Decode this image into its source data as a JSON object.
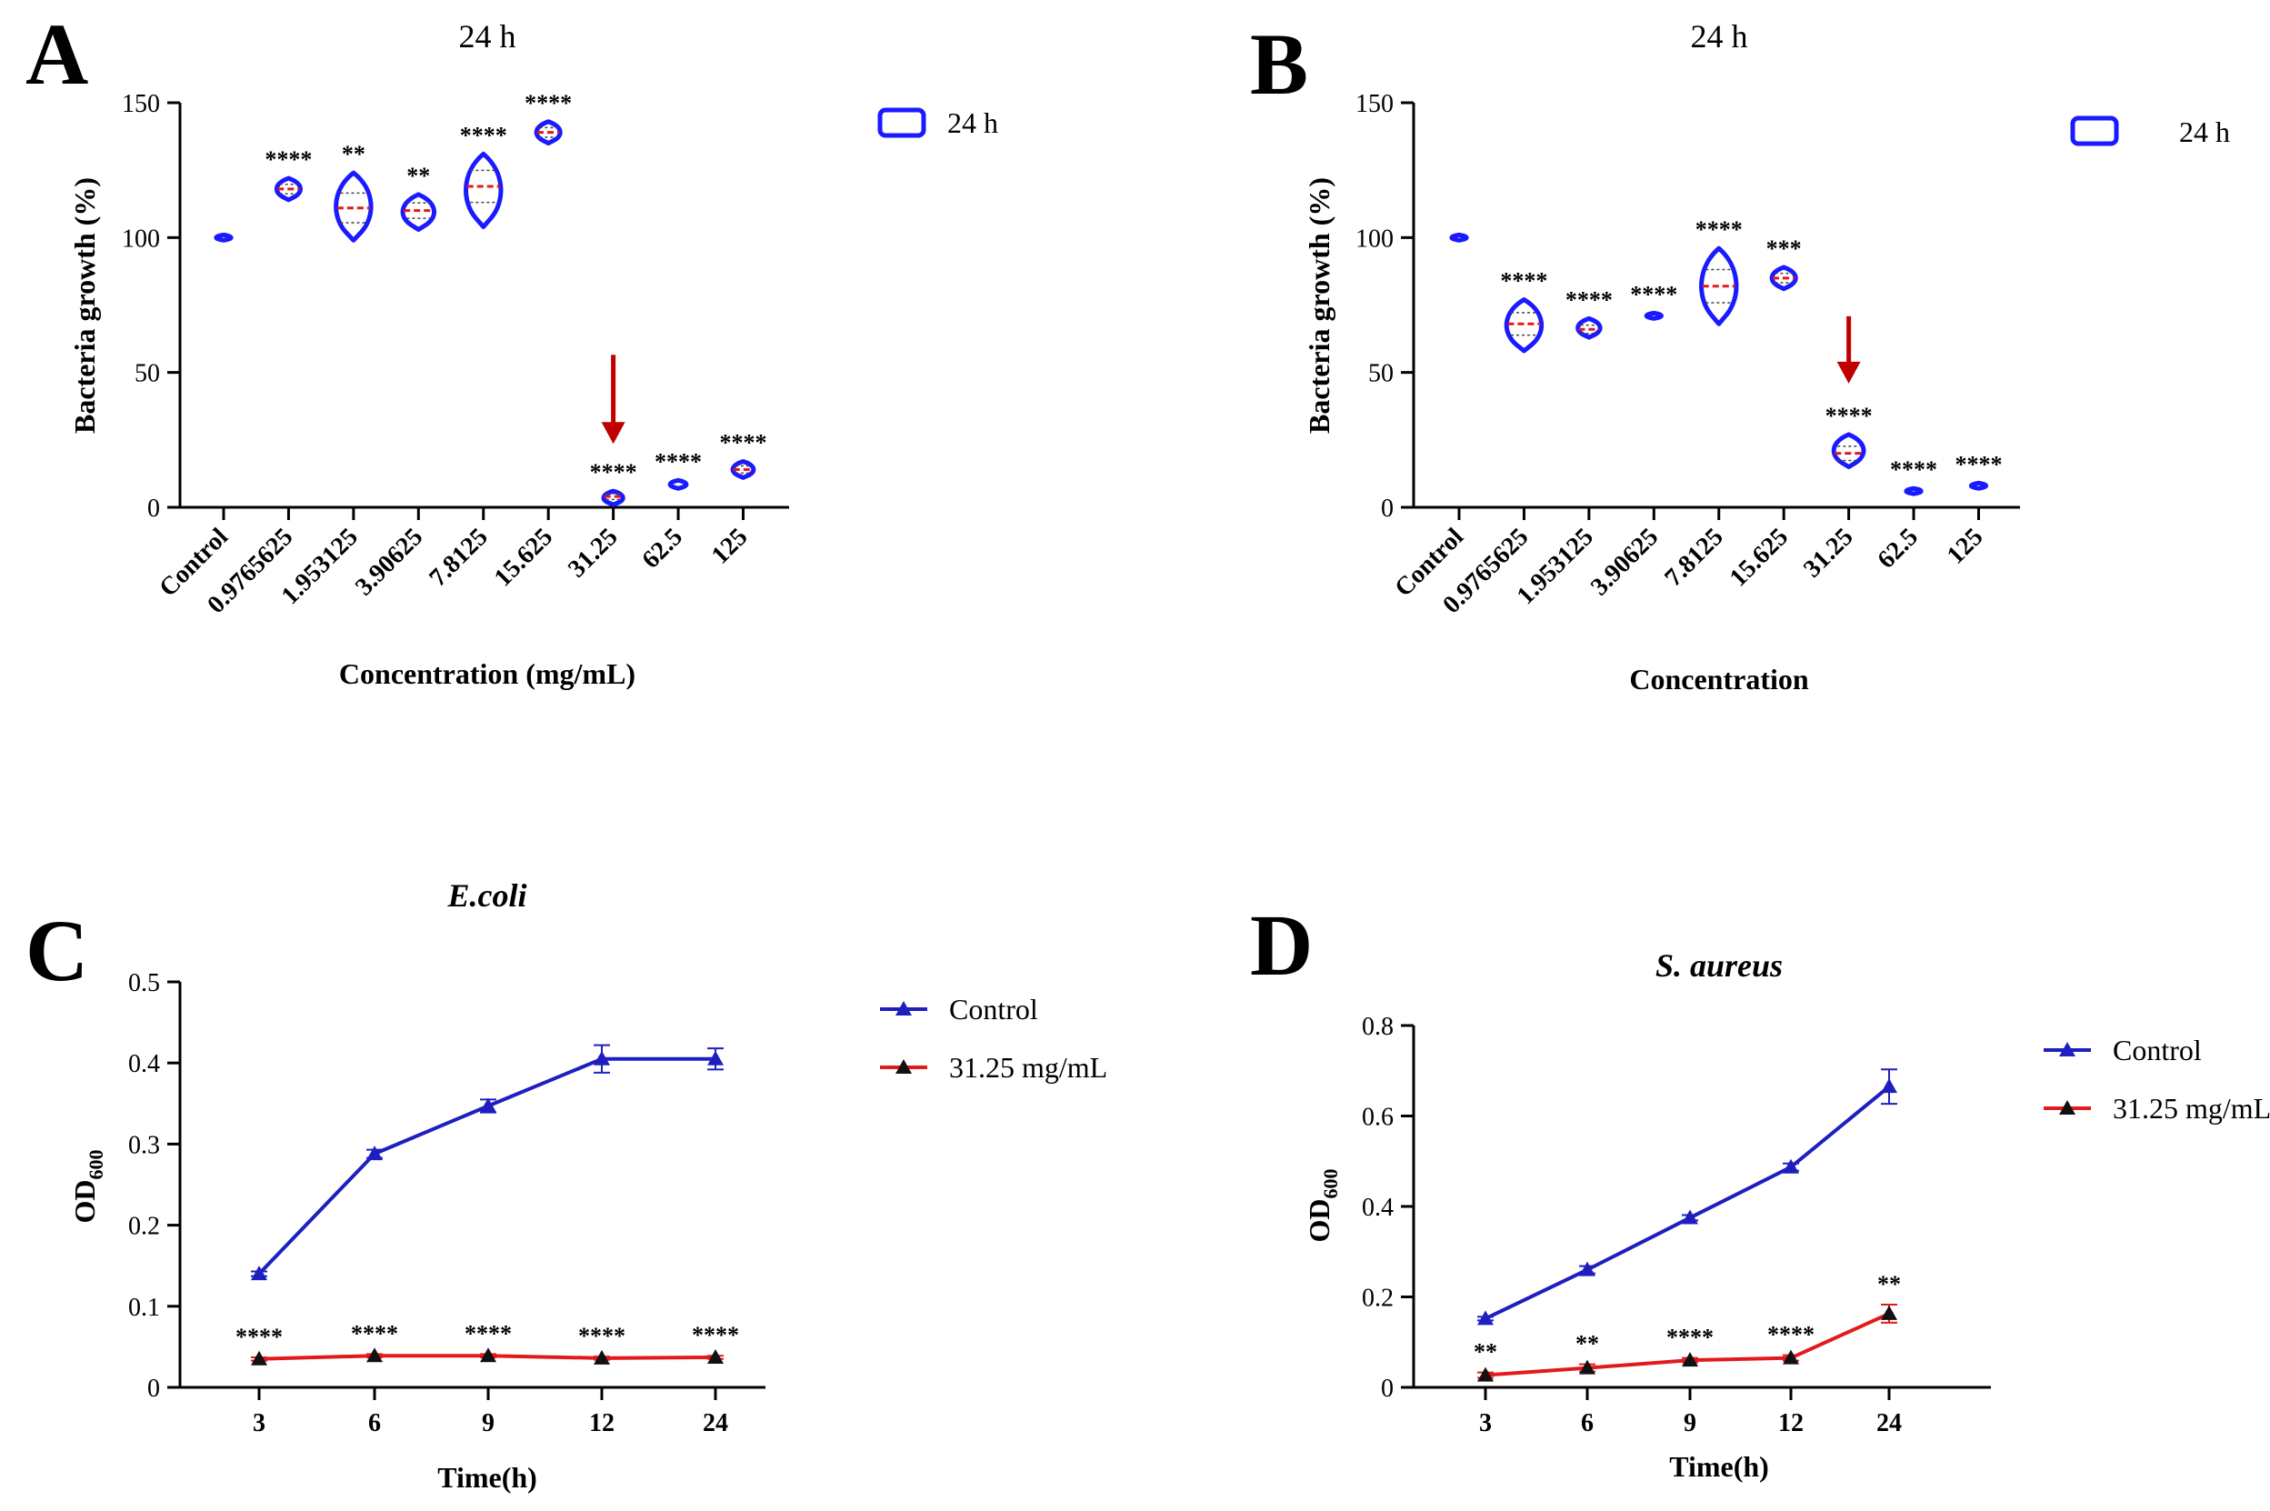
{
  "chart_data": [
    {
      "panel": "A",
      "type": "violin",
      "title": "24 h",
      "xlabel": "Concentration (mg/mL)",
      "ylabel": "Bacteria growth (%)",
      "ylim": [
        0,
        150
      ],
      "yticks": [
        0,
        50,
        100,
        150
      ],
      "categories": [
        "Control",
        "0.9765625",
        "1.953125",
        "3.90625",
        "7.8125",
        "15.625",
        "31.25",
        "62.5",
        "125"
      ],
      "series": [
        {
          "name": "24 h",
          "medians": [
            100,
            118,
            111,
            110,
            119,
            139,
            4,
            8,
            14
          ],
          "mins": [
            99,
            114,
            99,
            103,
            104,
            135,
            1,
            7,
            11
          ],
          "maxs": [
            101,
            122,
            124,
            116,
            131,
            143,
            6,
            10,
            17
          ]
        }
      ],
      "significance": [
        "",
        "****",
        "**",
        "**",
        "****",
        "****",
        "****",
        "****",
        "****"
      ],
      "arrow_at": "31.25",
      "legend": [
        "24 h"
      ]
    },
    {
      "panel": "B",
      "type": "violin",
      "title": "24 h",
      "xlabel": "Concentration",
      "ylabel": "Bacteria growth (%)",
      "ylim": [
        0,
        150
      ],
      "yticks": [
        0,
        50,
        100,
        150
      ],
      "categories": [
        "Control",
        "0.9765625",
        "1.953125",
        "3.90625",
        "7.8125",
        "15.625",
        "31.25",
        "62.5",
        "125"
      ],
      "series": [
        {
          "name": "24 h",
          "medians": [
            100,
            68,
            66,
            71,
            82,
            85,
            20,
            6,
            8
          ],
          "mins": [
            99,
            58,
            63,
            70,
            68,
            81,
            15,
            5,
            7
          ],
          "maxs": [
            101,
            77,
            70,
            72,
            96,
            89,
            27,
            7,
            9
          ]
        }
      ],
      "significance": [
        "",
        "****",
        "****",
        "****",
        "****",
        "***",
        "****",
        "****",
        "****"
      ],
      "arrow_at": "31.25",
      "legend": [
        "24 h"
      ]
    },
    {
      "panel": "C",
      "type": "line",
      "title": "E.coli",
      "xlabel": "Time(h)",
      "ylabel": "OD600",
      "ylim": [
        0,
        0.5
      ],
      "yticks": [
        0,
        0.1,
        0.2,
        0.3,
        0.4,
        0.5
      ],
      "categories": [
        "3",
        "6",
        "9",
        "12",
        "24"
      ],
      "series": [
        {
          "name": "Control",
          "color": "#1f1fbf",
          "values": [
            0.14,
            0.288,
            0.347,
            0.405,
            0.405
          ],
          "errors": [
            0.003,
            0.005,
            0.008,
            0.017,
            0.013
          ]
        },
        {
          "name": "31.25 mg/mL",
          "color": "#e31a1c",
          "values": [
            0.035,
            0.039,
            0.039,
            0.036,
            0.037
          ],
          "errors": [
            0.002,
            0.002,
            0.002,
            0.002,
            0.002
          ]
        }
      ],
      "significance": [
        "****",
        "****",
        "****",
        "****",
        "****"
      ]
    },
    {
      "panel": "D",
      "type": "line",
      "title": "S. aureus",
      "xlabel": "Time(h)",
      "ylabel": "OD600",
      "ylim": [
        0,
        0.8
      ],
      "yticks": [
        0,
        0.2,
        0.4,
        0.6,
        0.8
      ],
      "categories": [
        "3",
        "6",
        "9",
        "12",
        "24"
      ],
      "series": [
        {
          "name": "Control",
          "color": "#1f1fbf",
          "values": [
            0.152,
            0.26,
            0.375,
            0.487,
            0.665
          ],
          "errors": [
            0.004,
            0.008,
            0.006,
            0.008,
            0.038
          ]
        },
        {
          "name": "31.25 mg/mL",
          "color": "#e31a1c",
          "values": [
            0.027,
            0.043,
            0.06,
            0.065,
            0.163
          ],
          "errors": [
            0.006,
            0.008,
            0.005,
            0.006,
            0.02
          ]
        }
      ],
      "significance": [
        "**",
        "**",
        "****",
        "****",
        "**"
      ]
    }
  ],
  "colors": {
    "violin": "#1a1aff",
    "median": "#e31a1c",
    "quartile": "#444444",
    "arrow": "#c00000",
    "control_line": "#1f1fbf",
    "treatment_line": "#e31a1c",
    "marker": "#111111",
    "axis": "#000000"
  }
}
